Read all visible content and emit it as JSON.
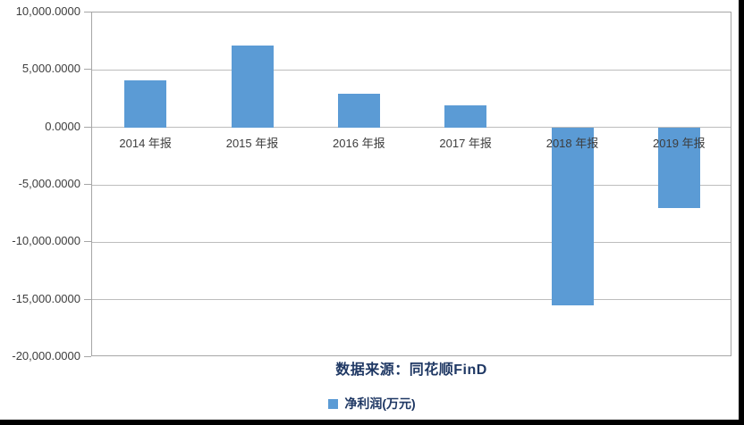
{
  "chart_data": {
    "type": "bar",
    "categories": [
      "2014 年报",
      "2015 年报",
      "2016 年报",
      "2017 年报",
      "2018 年报",
      "2019 年报"
    ],
    "series": [
      {
        "name": "净利润(万元)",
        "values": [
          4100,
          7100,
          2900,
          1900,
          -15500,
          -7000
        ]
      }
    ],
    "title": "",
    "xlabel": "",
    "ylabel": "",
    "ylim": [
      -20000,
      10000
    ],
    "ytick_step": 5000,
    "ytick_labels": [
      "10,000.0000",
      "5,000.0000",
      "0.0000",
      "-5,000.0000",
      "-10,000.0000",
      "-15,000.0000",
      "-20,000.0000"
    ],
    "grid": true,
    "legend_position": "bottom-center",
    "bar_color": "#5b9bd5"
  },
  "source_note": {
    "text": "数据来源：同花顺FinD"
  },
  "legend": {
    "label": "净利润(万元)"
  },
  "colors": {
    "bar": "#5b9bd5",
    "gridline": "#bdbdbd",
    "plot_border": "#a6a6a6",
    "axis_text": "#3d3d3d",
    "note_text": "#1f3864",
    "legend_text": "#1f3864",
    "edge_strip": "#000000",
    "background": "#ffffff"
  }
}
